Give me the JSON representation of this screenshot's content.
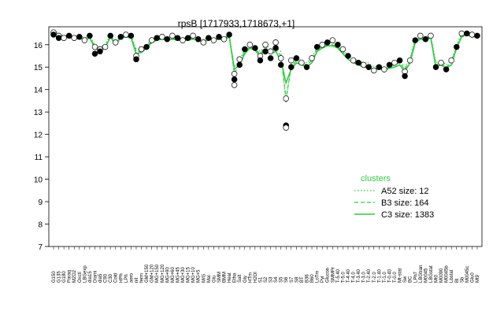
{
  "chart_data": {
    "type": "line",
    "title": "rpsB [1717933,1718673,+1]",
    "xlabel": "",
    "ylabel": "",
    "ylim": [
      7,
      16.8
    ],
    "yticks": [
      7,
      8,
      9,
      10,
      11,
      12,
      13,
      14,
      15,
      16
    ],
    "grid": false,
    "legend_placement": "bottom-right",
    "legend_title": "clusters",
    "series_color": "#2ecc40",
    "categories": [
      "G150",
      "G135",
      "G180",
      "Paraq",
      "M2D2",
      "Oxctl",
      "LBGexp",
      "dia15",
      "Diami",
      "dia5",
      "C90",
      "C30",
      "Cold",
      "HPh",
      "LPh",
      "aero",
      "nit",
      "ferm",
      "GM+150",
      "GM+120",
      "MG+150",
      "MG+120",
      "MG+90",
      "MG+60",
      "MG+45",
      "MG+30",
      "MG+15",
      "MG+10",
      "MG+5",
      "M/G",
      "Mal",
      "Glu",
      "SMM",
      "BMM",
      "Heat",
      "Etha",
      "Salt",
      "Gly",
      "HTm",
      "H2Ol",
      "S1",
      "S2",
      "S3",
      "S4",
      "S5",
      "S6",
      "S7",
      "S8",
      "BT",
      "B36",
      "B60",
      "LoTm",
      "Pyr",
      "Glucon",
      "SMMPr",
      "T-5.40",
      "T-5.0",
      "T-4.40",
      "T-4.0",
      "T-3.40",
      "T-3.0",
      "T-2.40",
      "T-2.0",
      "T-1.40",
      "T-1.0",
      "T-0.40",
      "T-0.0",
      "Mt-stat",
      "Sw",
      "BC",
      "LPh7",
      "LBGtran",
      "M0045",
      "LBGstat",
      "Mt0",
      "M0090",
      "M0045b",
      "Lbstat",
      "Bl",
      "Sb",
      "M0045c",
      "Glu0",
      "Mt9"
    ],
    "series": [
      {
        "name": "A52 size: 12",
        "line": "dotted",
        "values": [
          16.65,
          16.5,
          16.4,
          16.45,
          16.35,
          16.4,
          16.3,
          16.4,
          16.0,
          15.9,
          16.0,
          16.45,
          16.1,
          16.4,
          16.45,
          16.4,
          15.8,
          15.8,
          16.0,
          16.2,
          16.3,
          16.35,
          16.3,
          16.35,
          16.3,
          16.3,
          16.3,
          16.35,
          16.3,
          16.2,
          16.35,
          16.3,
          16.35,
          16.3,
          16.45,
          15.0,
          15.3,
          15.8,
          16.0,
          15.9,
          15.7,
          16.0,
          15.8,
          15.9,
          15.7,
          13.4,
          15.2,
          15.4,
          15.3,
          15.2,
          15.4,
          15.9,
          16.0,
          16.1,
          16.1,
          16.0,
          15.8,
          15.5,
          15.4,
          15.3,
          15.2,
          15.2,
          15.0,
          15.1,
          15.0,
          15.1,
          15.2,
          15.3,
          15.0,
          15.4,
          16.3,
          16.35,
          16.3,
          16.4,
          15.2,
          15.3,
          15.1,
          15.3,
          16.0,
          16.5,
          16.6,
          16.5,
          16.5
        ]
      },
      {
        "name": "B3 size: 164",
        "line": "dashed",
        "values": [
          16.55,
          16.4,
          16.35,
          16.4,
          16.3,
          16.35,
          16.25,
          16.35,
          15.9,
          15.8,
          15.9,
          16.4,
          16.05,
          16.35,
          16.4,
          16.35,
          15.7,
          15.7,
          15.9,
          16.15,
          16.25,
          16.3,
          16.25,
          16.3,
          16.25,
          16.25,
          16.25,
          16.3,
          16.25,
          16.15,
          16.3,
          16.25,
          16.3,
          16.25,
          16.4,
          14.7,
          15.2,
          15.7,
          15.9,
          15.8,
          15.6,
          15.9,
          15.7,
          15.8,
          15.5,
          13.6,
          15.0,
          15.3,
          15.2,
          15.1,
          15.3,
          15.8,
          15.9,
          16.0,
          16.0,
          15.9,
          15.7,
          15.4,
          15.3,
          15.2,
          15.1,
          15.1,
          14.9,
          15.0,
          14.9,
          15.0,
          15.1,
          15.2,
          14.9,
          15.3,
          16.2,
          16.3,
          16.25,
          16.35,
          15.1,
          15.2,
          15.0,
          15.2,
          15.9,
          16.4,
          16.5,
          16.4,
          16.4
        ]
      },
      {
        "name": "C3 size: 1383",
        "line": "solid",
        "values": [
          16.5,
          16.3,
          16.3,
          16.35,
          16.25,
          16.3,
          16.2,
          16.3,
          15.85,
          15.75,
          15.85,
          16.35,
          16.0,
          16.3,
          16.35,
          16.3,
          15.6,
          15.65,
          15.85,
          16.1,
          16.2,
          16.25,
          16.2,
          16.25,
          16.2,
          16.2,
          16.2,
          16.25,
          16.2,
          16.1,
          16.25,
          16.2,
          16.25,
          16.2,
          16.35,
          14.9,
          15.1,
          15.6,
          15.85,
          15.75,
          15.5,
          15.8,
          15.6,
          15.7,
          15.3,
          14.3,
          14.9,
          15.2,
          15.1,
          15.0,
          15.2,
          15.7,
          15.85,
          15.95,
          15.95,
          15.85,
          15.6,
          15.35,
          15.2,
          15.1,
          15.0,
          15.0,
          14.85,
          14.95,
          14.85,
          14.95,
          15.0,
          15.1,
          14.8,
          15.2,
          16.1,
          16.25,
          16.2,
          16.3,
          15.0,
          15.1,
          14.95,
          15.1,
          15.85,
          16.35,
          16.45,
          16.35,
          16.35
        ]
      }
    ],
    "points": [
      [
        0,
        16.55
      ],
      [
        0,
        16.45
      ],
      [
        1,
        16.4
      ],
      [
        1,
        16.3
      ],
      [
        2,
        16.3
      ],
      [
        3,
        16.4
      ],
      [
        4,
        16.3
      ],
      [
        5,
        16.35
      ],
      [
        6,
        16.2
      ],
      [
        7,
        16.4
      ],
      [
        8,
        15.9
      ],
      [
        8,
        15.6
      ],
      [
        9,
        15.8
      ],
      [
        9,
        15.7
      ],
      [
        10,
        15.9
      ],
      [
        11,
        16.4
      ],
      [
        12,
        16.1
      ],
      [
        13,
        16.35
      ],
      [
        14,
        16.45
      ],
      [
        15,
        16.4
      ],
      [
        16,
        15.5
      ],
      [
        16,
        15.35
      ],
      [
        17,
        15.8
      ],
      [
        18,
        15.9
      ],
      [
        19,
        16.2
      ],
      [
        20,
        16.3
      ],
      [
        21,
        16.35
      ],
      [
        22,
        16.25
      ],
      [
        23,
        16.4
      ],
      [
        24,
        16.3
      ],
      [
        25,
        16.2
      ],
      [
        26,
        16.3
      ],
      [
        27,
        16.4
      ],
      [
        28,
        16.25
      ],
      [
        29,
        16.1
      ],
      [
        30,
        16.3
      ],
      [
        31,
        16.2
      ],
      [
        32,
        16.35
      ],
      [
        33,
        16.25
      ],
      [
        34,
        16.45
      ],
      [
        35,
        14.7
      ],
      [
        35,
        14.45
      ],
      [
        35,
        14.2
      ],
      [
        36,
        15.1
      ],
      [
        36,
        15.35
      ],
      [
        37,
        15.8
      ],
      [
        38,
        16.0
      ],
      [
        39,
        15.85
      ],
      [
        40,
        15.5
      ],
      [
        40,
        15.3
      ],
      [
        41,
        16.0
      ],
      [
        41,
        15.7
      ],
      [
        42,
        15.7
      ],
      [
        42,
        15.4
      ],
      [
        43,
        16.1
      ],
      [
        43,
        15.85
      ],
      [
        44,
        15.4
      ],
      [
        44,
        15.1
      ],
      [
        45,
        13.6
      ],
      [
        45,
        12.4
      ],
      [
        45,
        12.3
      ],
      [
        46,
        15.0
      ],
      [
        46,
        15.3
      ],
      [
        47,
        15.4
      ],
      [
        48,
        15.2
      ],
      [
        49,
        15.0
      ],
      [
        50,
        15.4
      ],
      [
        51,
        15.9
      ],
      [
        52,
        16.0
      ],
      [
        53,
        16.1
      ],
      [
        54,
        16.2
      ],
      [
        55,
        16.0
      ],
      [
        56,
        15.8
      ],
      [
        57,
        15.5
      ],
      [
        58,
        15.3
      ],
      [
        59,
        15.2
      ],
      [
        60,
        15.1
      ],
      [
        61,
        15.0
      ],
      [
        62,
        14.85
      ],
      [
        63,
        15.0
      ],
      [
        64,
        14.9
      ],
      [
        65,
        15.1
      ],
      [
        66,
        15.2
      ],
      [
        67,
        15.3
      ],
      [
        68,
        14.8
      ],
      [
        68,
        14.6
      ],
      [
        69,
        15.3
      ],
      [
        70,
        16.2
      ],
      [
        71,
        16.4
      ],
      [
        72,
        16.25
      ],
      [
        73,
        16.4
      ],
      [
        74,
        15.0
      ],
      [
        75,
        15.2
      ],
      [
        76,
        14.9
      ],
      [
        77,
        15.3
      ],
      [
        78,
        15.9
      ],
      [
        79,
        16.5
      ],
      [
        80,
        16.5
      ],
      [
        81,
        16.45
      ],
      [
        82,
        16.4
      ]
    ]
  }
}
